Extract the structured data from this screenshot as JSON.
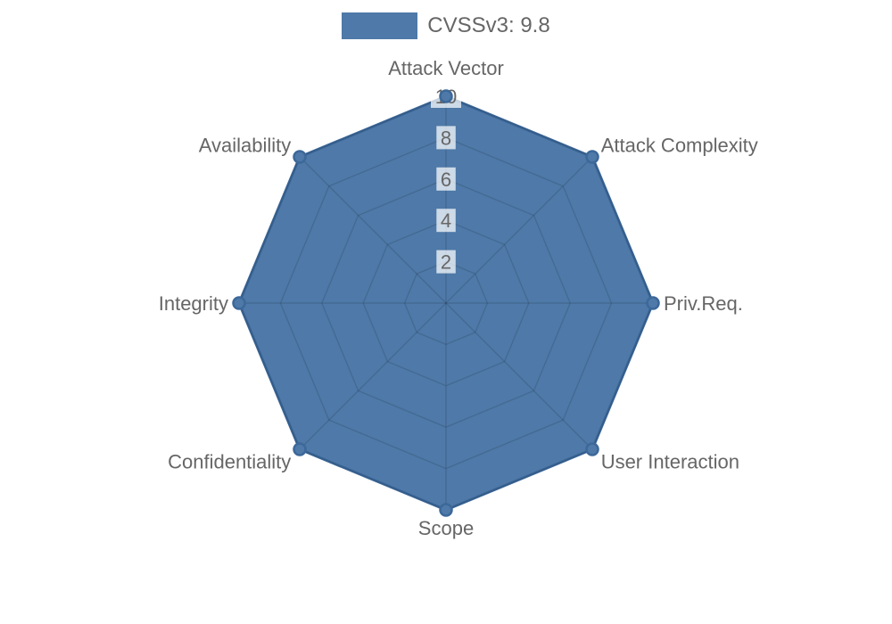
{
  "legend": {
    "label": "CVSSv3: 9.8"
  },
  "chart_data": {
    "type": "radar",
    "categories": [
      "Attack Vector",
      "Attack Complexity",
      "Priv.Req.",
      "User Interaction",
      "Scope",
      "Confidentiality",
      "Integrity",
      "Availability"
    ],
    "series": [
      {
        "name": "CVSSv3: 9.8",
        "values": [
          10,
          10,
          10,
          10,
          10,
          10,
          10,
          10
        ]
      }
    ],
    "scale": {
      "min": 0,
      "max": 10,
      "ticks": [
        2,
        4,
        6,
        8,
        10
      ]
    },
    "legend_position": "top",
    "grid": true,
    "colors": {
      "fill": "#4e79a8",
      "border": "#3c689a",
      "grid": "rgba(0,0,0,0.12)",
      "text": "#666666",
      "tick_backdrop": "rgba(255,255,255,0.72)"
    }
  }
}
